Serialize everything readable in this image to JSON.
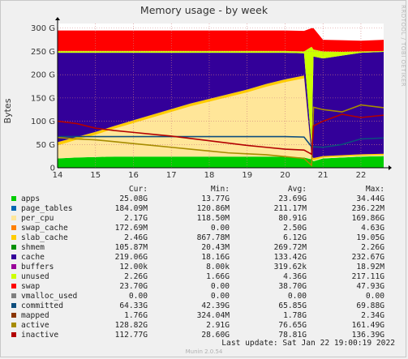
{
  "title": "Memory usage - by week",
  "watermark": "RRDTOOL / TOBI OETIKER",
  "footer": "Last update: Sat Jan 22 19:00:19 2022",
  "munin": "Munin 2.0.54",
  "legend_headers": {
    "cur": "Cur:",
    "min": "Min:",
    "avg": "Avg:",
    "max": "Max:"
  },
  "legend": [
    {
      "name": "apps",
      "color": "#00cc00",
      "cur": "25.08G",
      "min": "13.77G",
      "avg": "23.69G",
      "max": "34.44G"
    },
    {
      "name": "page_tables",
      "color": "#0066b3",
      "cur": "184.09M",
      "min": "120.86M",
      "avg": "211.17M",
      "max": "236.22M"
    },
    {
      "name": "per_cpu",
      "color": "#ffe699",
      "cur": "2.17G",
      "min": "118.50M",
      "avg": "80.91G",
      "max": "169.86G"
    },
    {
      "name": "swap_cache",
      "color": "#ff8000",
      "cur": "172.69M",
      "min": "0.00",
      "avg": "2.50G",
      "max": "4.63G"
    },
    {
      "name": "slab_cache",
      "color": "#ffcc00",
      "cur": "2.46G",
      "min": "867.78M",
      "avg": "6.12G",
      "max": "19.05G"
    },
    {
      "name": "shmem",
      "color": "#008f00",
      "cur": "105.87M",
      "min": "20.43M",
      "avg": "269.72M",
      "max": "2.26G"
    },
    {
      "name": "cache",
      "color": "#330099",
      "cur": "219.06G",
      "min": "18.16G",
      "avg": "133.42G",
      "max": "232.67G"
    },
    {
      "name": "buffers",
      "color": "#990099",
      "cur": "12.00k",
      "min": "8.00k",
      "avg": "319.62k",
      "max": "18.92M"
    },
    {
      "name": "unused",
      "color": "#ccff00",
      "cur": "2.26G",
      "min": "1.66G",
      "avg": "4.36G",
      "max": "217.11G"
    },
    {
      "name": "swap",
      "color": "#ff0000",
      "cur": "23.70G",
      "min": "0.00",
      "avg": "38.70G",
      "max": "47.93G"
    },
    {
      "name": "vmalloc_used",
      "color": "#808080",
      "cur": "0.00",
      "min": "0.00",
      "avg": "0.00",
      "max": "0.00"
    },
    {
      "name": "committed",
      "color": "#0d4d7d",
      "cur": "64.33G",
      "min": "42.39G",
      "avg": "65.85G",
      "max": "69.88G"
    },
    {
      "name": "mapped",
      "color": "#8a3500",
      "cur": "1.76G",
      "min": "324.04M",
      "avg": "1.78G",
      "max": "2.34G"
    },
    {
      "name": "active",
      "color": "#a78c00",
      "cur": "128.82G",
      "min": "2.91G",
      "avg": "76.65G",
      "max": "161.49G"
    },
    {
      "name": "inactive",
      "color": "#b30000",
      "cur": "112.77G",
      "min": "28.60G",
      "avg": "78.81G",
      "max": "136.39G"
    }
  ],
  "chart_data": {
    "type": "area",
    "title": "Memory usage - by week",
    "ylabel": "Bytes",
    "ylim": [
      0,
      310
    ],
    "yunit": "G",
    "y_ticks": [
      0,
      50,
      100,
      150,
      200,
      250,
      300
    ],
    "y_tick_labels": [
      "0",
      "50 G",
      "100 G",
      "150 G",
      "200 G",
      "250 G",
      "300 G"
    ],
    "x_range": [
      14,
      22.6
    ],
    "x_ticks": [
      14,
      15,
      16,
      17,
      18,
      19,
      20,
      21,
      22
    ],
    "x_tick_labels": [
      "14",
      "15",
      "16",
      "17",
      "18",
      "19",
      "20",
      "21",
      "22"
    ],
    "grid": true,
    "x": [
      14,
      14.5,
      15,
      15.5,
      16,
      16.5,
      17,
      17.5,
      18,
      18.5,
      19,
      19.5,
      20,
      20.5,
      20.7,
      20.75,
      21,
      21.5,
      22,
      22.6
    ],
    "stacked_series": [
      {
        "name": "apps",
        "values": [
          20,
          22,
          23,
          24,
          24,
          24,
          24,
          24,
          24,
          24,
          24,
          24,
          24,
          22,
          18,
          14,
          20,
          22,
          24,
          25
        ]
      },
      {
        "name": "per_cpu",
        "values": [
          28,
          38,
          48,
          60,
          72,
          84,
          96,
          108,
          118,
          128,
          138,
          150,
          160,
          170,
          2,
          2,
          2,
          2,
          2,
          2
        ]
      },
      {
        "name": "slab_cache",
        "values": [
          7,
          6,
          6,
          6,
          6,
          6,
          6,
          6,
          6,
          6,
          6,
          6,
          6,
          6,
          5,
          5,
          3,
          3,
          3,
          3
        ]
      },
      {
        "name": "cache",
        "values": [
          192,
          181,
          170,
          157,
          145,
          133,
          121,
          109,
          99,
          89,
          79,
          67,
          57,
          48,
          20,
          218,
          210,
          214,
          218,
          219
        ]
      },
      {
        "name": "unused",
        "values": [
          4,
          4,
          4,
          4,
          4,
          4,
          4,
          4,
          4,
          4,
          4,
          4,
          4,
          4,
          215,
          15,
          15,
          8,
          3,
          2
        ]
      },
      {
        "name": "swap",
        "values": [
          44,
          44,
          44,
          44,
          44,
          44,
          44,
          44,
          44,
          44,
          44,
          44,
          44,
          44,
          40,
          46,
          25,
          25,
          23,
          24
        ]
      }
    ],
    "line_series": [
      {
        "name": "committed",
        "values": [
          67,
          67,
          67,
          67,
          67,
          67,
          67,
          67,
          67,
          67,
          67,
          67,
          67,
          66,
          45,
          45,
          44,
          50,
          62,
          64
        ]
      },
      {
        "name": "active",
        "values": [
          65,
          62,
          60,
          56,
          52,
          48,
          44,
          40,
          36,
          32,
          30,
          28,
          24,
          20,
          5,
          130,
          125,
          120,
          135,
          129
        ]
      },
      {
        "name": "inactive",
        "values": [
          100,
          95,
          85,
          80,
          76,
          72,
          68,
          63,
          58,
          53,
          48,
          44,
          40,
          38,
          29,
          90,
          100,
          115,
          108,
          113
        ]
      }
    ]
  }
}
